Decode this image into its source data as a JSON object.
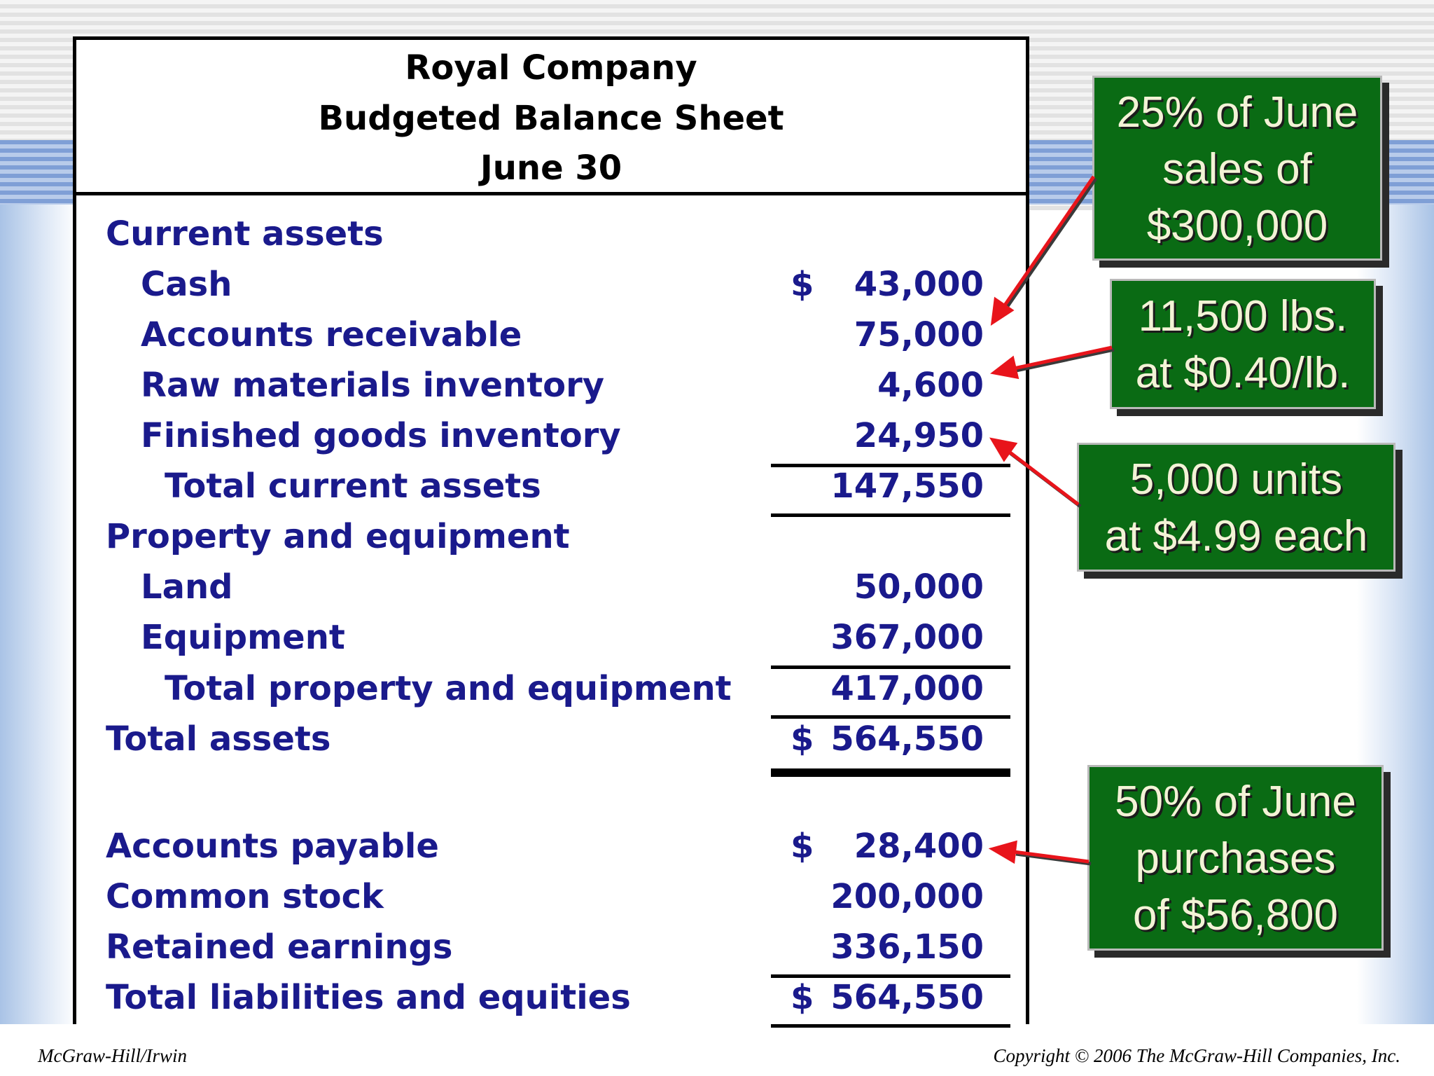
{
  "header": {
    "company": "Royal Company",
    "title": "Budgeted Balance Sheet",
    "date": "June 30"
  },
  "rows": [
    {
      "label": "Current assets",
      "dollar": "",
      "amount": ""
    },
    {
      "label": "Cash",
      "dollar": "$",
      "amount": "43,000"
    },
    {
      "label": "Accounts receivable",
      "dollar": "",
      "amount": "75,000"
    },
    {
      "label": "Raw materials inventory",
      "dollar": "",
      "amount": "4,600"
    },
    {
      "label": "Finished goods inventory",
      "dollar": "",
      "amount": "24,950"
    },
    {
      "label": "Total current assets",
      "dollar": "",
      "amount": "147,550"
    },
    {
      "label": "Property and equipment",
      "dollar": "",
      "amount": ""
    },
    {
      "label": "Land",
      "dollar": "",
      "amount": "50,000"
    },
    {
      "label": "Equipment",
      "dollar": "",
      "amount": "367,000"
    },
    {
      "label": "Total property and equipment",
      "dollar": "",
      "amount": "417,000"
    },
    {
      "label": "Total assets",
      "dollar": "$",
      "amount": "564,550"
    },
    {
      "label": "Accounts payable",
      "dollar": "$",
      "amount": "28,400"
    },
    {
      "label": "Common stock",
      "dollar": "",
      "amount": "200,000"
    },
    {
      "label": "Retained earnings",
      "dollar": "",
      "amount": "336,150"
    },
    {
      "label": "Total liabilities and equities",
      "dollar": "$",
      "amount": "564,550"
    }
  ],
  "callouts": {
    "receivable": {
      "line1": "25% of June",
      "line2": "sales of",
      "line3": "$300,000"
    },
    "raw_materials": {
      "line1": "11,500 lbs.",
      "line2": "at $0.40/lb."
    },
    "finished_goods": {
      "line1": "5,000 units",
      "line2": "at $4.99 each"
    },
    "payable": {
      "line1": "50% of June",
      "line2": "purchases",
      "line3": "of $56,800"
    }
  },
  "colors": {
    "callout_bg": "#0a6b14",
    "callout_text": "#f3f3d6",
    "label_text": "#1a1a8c",
    "arrow": "#e8141b"
  },
  "footer": {
    "left": "McGraw-Hill/Irwin",
    "right": "Copyright © 2006 The McGraw-Hill Companies, Inc."
  }
}
